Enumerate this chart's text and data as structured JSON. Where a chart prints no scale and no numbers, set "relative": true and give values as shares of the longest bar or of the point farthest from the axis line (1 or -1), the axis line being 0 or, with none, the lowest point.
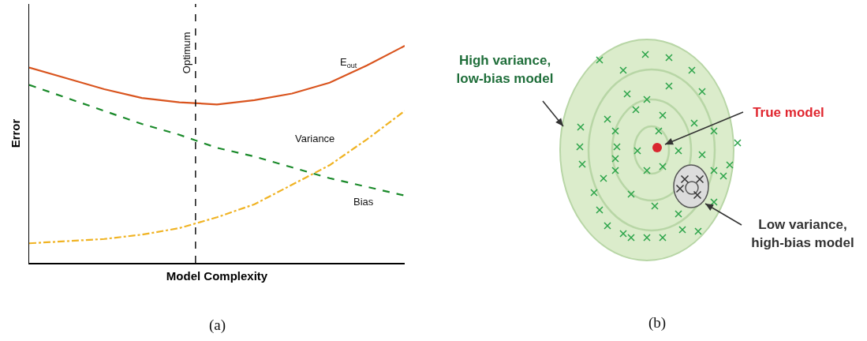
{
  "chart_data": [
    {
      "type": "line",
      "relative": true,
      "xlabel": "Model Complexity",
      "ylabel": "Error",
      "categories": [
        null,
        null,
        null,
        null,
        null,
        null,
        null,
        null,
        null,
        null,
        null
      ],
      "series": [
        {
          "name": "E$_{out}$",
          "color": "#d9541e",
          "line_style": "solid",
          "values": [
            0.9,
            0.85,
            0.8,
            0.76,
            0.74,
            0.73,
            0.75,
            0.78,
            0.83,
            0.91,
            1
          ]
        },
        {
          "name": "Variance",
          "color": "#f0b323",
          "line_style": "dotted",
          "values": [
            0.09,
            0.1,
            0.11,
            0.13,
            0.16,
            0.21,
            0.27,
            0.36,
            0.45,
            0.57,
            0.7
          ]
        },
        {
          "name": "Bias",
          "color": "#1a8a2a",
          "line_style": "dashed",
          "values": [
            0.82,
            0.76,
            0.7,
            0.64,
            0.59,
            0.53,
            0.49,
            0.44,
            0.39,
            0.35,
            0.31
          ]
        }
      ],
      "marker": "none",
      "legend": false,
      "annotations": [
        "(a)",
        "Optimum"
      ]
    },
    {
      "type": "other",
      "annotations": [
        "High variance, low-bias model",
        "True model",
        "Low variance, high-bias model",
        "(b)"
      ]
    }
  ]
}
